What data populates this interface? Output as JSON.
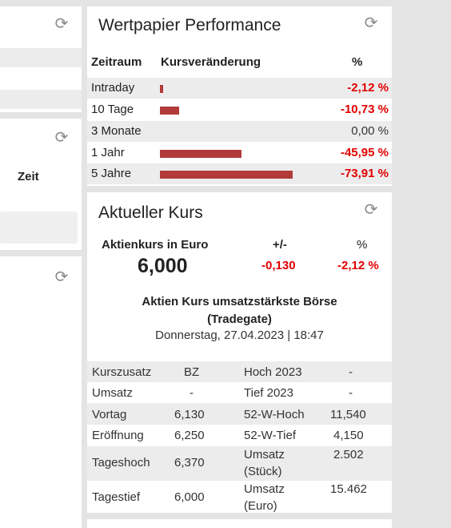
{
  "left_panel_2": {
    "column_label": "Zeit"
  },
  "performance": {
    "title": "Wertpapier Performance",
    "headers": {
      "period": "Zeitraum",
      "change": "Kursveränderung",
      "percent": "%"
    },
    "rows": [
      {
        "label": "Intraday",
        "value": "-2,12 %",
        "change_pct": -2.12
      },
      {
        "label": "10 Tage",
        "value": "-10,73 %",
        "change_pct": -10.73
      },
      {
        "label": "3 Monate",
        "value": "0,00 %",
        "change_pct": 0.0
      },
      {
        "label": "1 Jahr",
        "value": "-45,95 %",
        "change_pct": -45.95
      },
      {
        "label": "5 Jahre",
        "value": "-73,91 %",
        "change_pct": -73.91
      }
    ],
    "bar_color": "#b23a3a",
    "negative_color": "#e10000"
  },
  "kurs": {
    "title": "Aktueller Kurs",
    "price_label": "Aktienkurs in Euro",
    "price": "6,000",
    "change_label": "+/-",
    "change": "-0,130",
    "percent_label": "%",
    "percent": "-2,12 %",
    "exchange_title_1": "Aktien Kurs umsatzstärkste Börse",
    "exchange_title_2": "(Tradegate)",
    "datetime": "Donnerstag, 27.04.2023 | 18:47",
    "table": [
      {
        "l1": "Kurszusatz",
        "v1": "BZ",
        "l2": "Hoch 2023",
        "v2": "-"
      },
      {
        "l1": "Umsatz",
        "v1": "-",
        "l2": "Tief 2023",
        "v2": "-"
      },
      {
        "l1": "Vortag",
        "v1": "6,130",
        "l2": "52-W-Hoch",
        "v2": "11,540"
      },
      {
        "l1": "Eröffnung",
        "v1": "6,250",
        "l2": "52-W-Tief",
        "v2": "4,150"
      },
      {
        "l1": "Tageshoch",
        "v1": "6,370",
        "l2": "Umsatz",
        "l2b": "(Stück)",
        "v2": "2.502"
      },
      {
        "l1": "Tagestief",
        "v1": "6,000",
        "l2": "Umsatz",
        "l2b": "(Euro)",
        "v2": "15.462"
      }
    ]
  },
  "icons": {
    "refresh": "refresh-icon"
  }
}
